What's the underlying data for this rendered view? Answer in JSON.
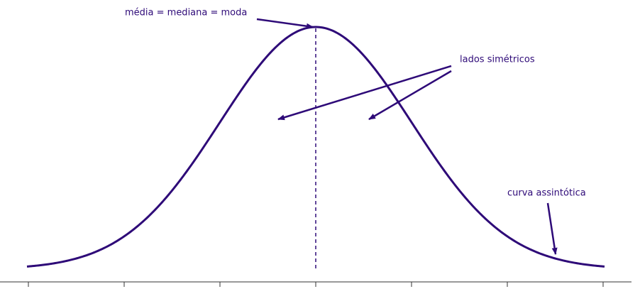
{
  "annotations": {
    "center": "média = mediana = moda",
    "sides": "lados simétricos",
    "tail": "curva assintótica"
  }
}
